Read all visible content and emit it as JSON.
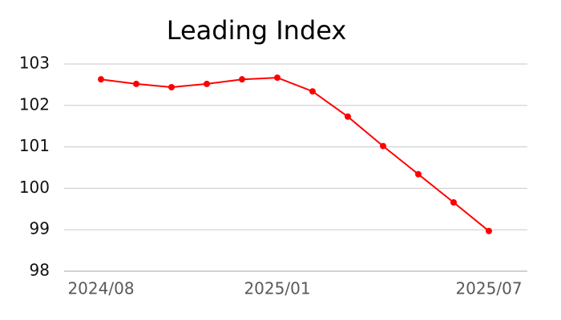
{
  "chart_data": {
    "type": "line",
    "title": "Leading Index",
    "categories": [
      "2024/08",
      null,
      null,
      null,
      null,
      "2025/01",
      null,
      null,
      null,
      null,
      null,
      "2025/07"
    ],
    "series": [
      {
        "name": "Leading Index",
        "color": "#ff0000",
        "values": [
          102.63,
          102.52,
          102.44,
          102.52,
          102.63,
          102.67,
          102.34,
          101.73,
          101.02,
          100.34,
          99.66,
          98.97
        ]
      }
    ],
    "ylim": [
      98,
      103
    ],
    "yticks": [
      98,
      99,
      100,
      101,
      102,
      103
    ],
    "grid": true
  }
}
